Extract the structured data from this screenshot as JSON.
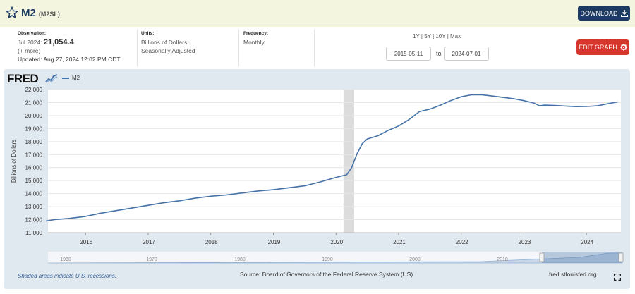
{
  "header": {
    "series_title": "M2",
    "series_id": "(M2SL)",
    "download_label": "DOWNLOAD"
  },
  "meta": {
    "observation_label": "Observation:",
    "observation_date": "Jul 2024:",
    "observation_value": "21,054.4",
    "more_link": "(+ more)",
    "updated": "Updated: Aug 27, 2024 12:02 PM CDT",
    "units_label": "Units:",
    "units_line1": "Billions of Dollars,",
    "units_line2": "Seasonally Adjusted",
    "frequency_label": "Frequency:",
    "frequency_value": "Monthly"
  },
  "controls": {
    "range_1y": "1Y",
    "range_5y": "5Y",
    "range_10y": "10Y",
    "range_max": "Max",
    "range_sep": "|",
    "date_from": "2015-05-11",
    "to_label": "to",
    "date_to": "2024-07-01",
    "edit_graph_label": "EDIT GRAPH"
  },
  "footer": {
    "shaded_note": "Shaded areas indicate U.S. recessions.",
    "source": "Source: Board of Governors of the Federal Reserve System (US)",
    "site": "fred.stlouisfed.org"
  },
  "logo_text": "FRED",
  "icons": {
    "star": "star-icon",
    "download": "download-icon",
    "gear": "gear-icon",
    "fullscreen": "fullscreen-icon",
    "logo_chart": "fred-logo-chart-icon"
  },
  "colors": {
    "series": "#4572a7",
    "recession": "#dcdcdc",
    "download_button": "#1c3a62",
    "edit_button": "#d5372c",
    "chart_background": "#e1e9f0",
    "topbar": "#f4f5df"
  },
  "chart_data": {
    "type": "line",
    "title": "M2",
    "ylabel": "Billions of Dollars",
    "xlabel": "",
    "ylim": [
      11000,
      22000
    ],
    "xlim": [
      2015.4,
      2024.55
    ],
    "y_ticks": [
      11000,
      12000,
      13000,
      14000,
      15000,
      16000,
      17000,
      18000,
      19000,
      20000,
      21000,
      22000
    ],
    "y_tick_labels": [
      "11,000",
      "12,000",
      "13,000",
      "14,000",
      "15,000",
      "16,000",
      "17,000",
      "18,000",
      "19,000",
      "20,000",
      "21,000",
      "22,000"
    ],
    "x_ticks": [
      2016,
      2017,
      2018,
      2019,
      2020,
      2021,
      2022,
      2023,
      2024
    ],
    "x_tick_labels": [
      "2016",
      "2017",
      "2018",
      "2019",
      "2020",
      "2021",
      "2022",
      "2023",
      "2024"
    ],
    "legend": [
      "M2"
    ],
    "legend_position": "top-left",
    "grid": true,
    "recessions": [
      [
        2020.12,
        2020.29
      ]
    ],
    "series": [
      {
        "name": "M2",
        "x": [
          2015.37,
          2015.5,
          2015.75,
          2016.0,
          2016.25,
          2016.5,
          2016.75,
          2017.0,
          2017.25,
          2017.5,
          2017.75,
          2018.0,
          2018.25,
          2018.5,
          2018.75,
          2019.0,
          2019.25,
          2019.5,
          2019.75,
          2020.0,
          2020.17,
          2020.25,
          2020.33,
          2020.42,
          2020.5,
          2020.67,
          2020.83,
          2021.0,
          2021.17,
          2021.33,
          2021.5,
          2021.67,
          2021.83,
          2022.0,
          2022.17,
          2022.33,
          2022.5,
          2022.67,
          2022.83,
          2023.0,
          2023.17,
          2023.25,
          2023.33,
          2023.5,
          2023.67,
          2023.83,
          2024.0,
          2024.17,
          2024.33,
          2024.5
        ],
        "values": [
          11900,
          12000,
          12100,
          12250,
          12500,
          12700,
          12900,
          13100,
          13300,
          13450,
          13650,
          13800,
          13900,
          14050,
          14200,
          14300,
          14450,
          14600,
          14900,
          15250,
          15450,
          16000,
          17000,
          17850,
          18200,
          18450,
          18850,
          19200,
          19700,
          20300,
          20500,
          20800,
          21150,
          21450,
          21600,
          21600,
          21500,
          21400,
          21300,
          21150,
          20950,
          20750,
          20800,
          20780,
          20730,
          20690,
          20700,
          20750,
          20900,
          21054
        ]
      }
    ],
    "navigator": {
      "ticks": [
        "1960",
        "1970",
        "1980",
        "1990",
        "2000",
        "2010"
      ],
      "range_from": "2015-05-11",
      "range_to": "2024-07-01"
    }
  }
}
